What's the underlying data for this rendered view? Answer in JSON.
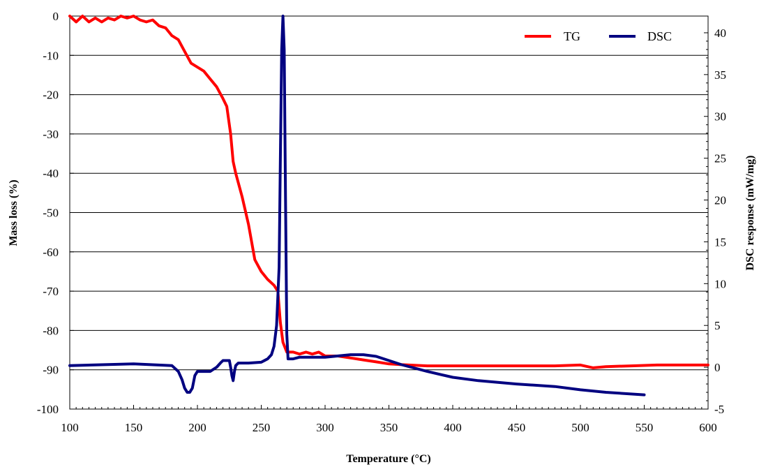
{
  "chart_data": {
    "type": "line",
    "xlabel": "Temperature (°C)",
    "ylabel_left": "Mass loss (%)",
    "ylabel_right": "DSC response  (mW/mg)",
    "xlim": [
      100,
      600
    ],
    "ylim_left": [
      -100,
      0
    ],
    "ylim_right": [
      -5,
      42
    ],
    "x_ticks": [
      100,
      150,
      200,
      250,
      300,
      350,
      400,
      450,
      500,
      550,
      600
    ],
    "y_left_ticks": [
      0,
      -10,
      -20,
      -30,
      -40,
      -50,
      -60,
      -70,
      -80,
      -90,
      -100
    ],
    "y_right_ticks": [
      40,
      35,
      30,
      25,
      20,
      15,
      10,
      5,
      0,
      -5
    ],
    "grid": "horizontal major lines on left axis",
    "legend_position": "top-right",
    "series": [
      {
        "name": "TG",
        "axis": "left",
        "color": "#ff0000",
        "x": [
          100,
          105,
          110,
          115,
          120,
          125,
          130,
          135,
          140,
          145,
          150,
          155,
          160,
          165,
          170,
          175,
          180,
          185,
          190,
          195,
          200,
          205,
          210,
          215,
          220,
          223,
          226,
          228,
          230,
          235,
          240,
          245,
          250,
          255,
          260,
          263,
          265,
          267,
          270,
          275,
          280,
          285,
          290,
          295,
          300,
          310,
          320,
          330,
          340,
          350,
          360,
          380,
          400,
          420,
          450,
          480,
          500,
          510,
          520,
          540,
          560,
          580,
          600
        ],
        "y": [
          0,
          -1.5,
          0,
          -1.5,
          -0.5,
          -1.5,
          -0.5,
          -1,
          0,
          -0.5,
          0,
          -1,
          -1.5,
          -1,
          -2.5,
          -3,
          -5,
          -6,
          -9,
          -12,
          -13,
          -14,
          -16,
          -18,
          -21,
          -23,
          -30,
          -37,
          -40,
          -46,
          -53,
          -62,
          -65,
          -67,
          -68.5,
          -70,
          -78,
          -83,
          -85.5,
          -85.5,
          -86,
          -85.5,
          -86,
          -85.5,
          -86.5,
          -86.5,
          -87,
          -87.5,
          -88,
          -88.5,
          -88.7,
          -89,
          -89,
          -89,
          -89,
          -89,
          -88.8,
          -89.5,
          -89.2,
          -89,
          -88.8,
          -88.8,
          -88.8
        ]
      },
      {
        "name": "DSC",
        "axis": "right",
        "color": "#000080",
        "x": [
          100,
          150,
          180,
          185,
          188,
          190,
          192,
          194,
          196,
          198,
          200,
          210,
          215,
          218,
          220,
          225,
          226,
          227,
          228,
          229,
          230,
          232,
          240,
          250,
          255,
          258,
          260,
          262,
          264,
          265,
          266,
          267,
          268,
          269,
          270,
          271,
          272,
          275,
          280,
          300,
          320,
          330,
          340,
          350,
          360,
          380,
          400,
          420,
          450,
          480,
          500,
          520,
          550
        ],
        "y": [
          0.2,
          0.4,
          0.2,
          -0.5,
          -1.5,
          -2.5,
          -3,
          -3,
          -2.5,
          -1,
          -0.5,
          -0.5,
          0,
          0.5,
          0.8,
          0.8,
          0,
          -1,
          -1.6,
          -0.5,
          0.2,
          0.5,
          0.5,
          0.6,
          1,
          1.5,
          2.5,
          5,
          12,
          25,
          38,
          42,
          38,
          20,
          4,
          1,
          1,
          1,
          1.2,
          1.2,
          1.5,
          1.5,
          1.3,
          0.8,
          0.3,
          -0.5,
          -1.2,
          -1.6,
          -2,
          -2.3,
          -2.7,
          -3,
          -3.3
        ]
      }
    ]
  }
}
